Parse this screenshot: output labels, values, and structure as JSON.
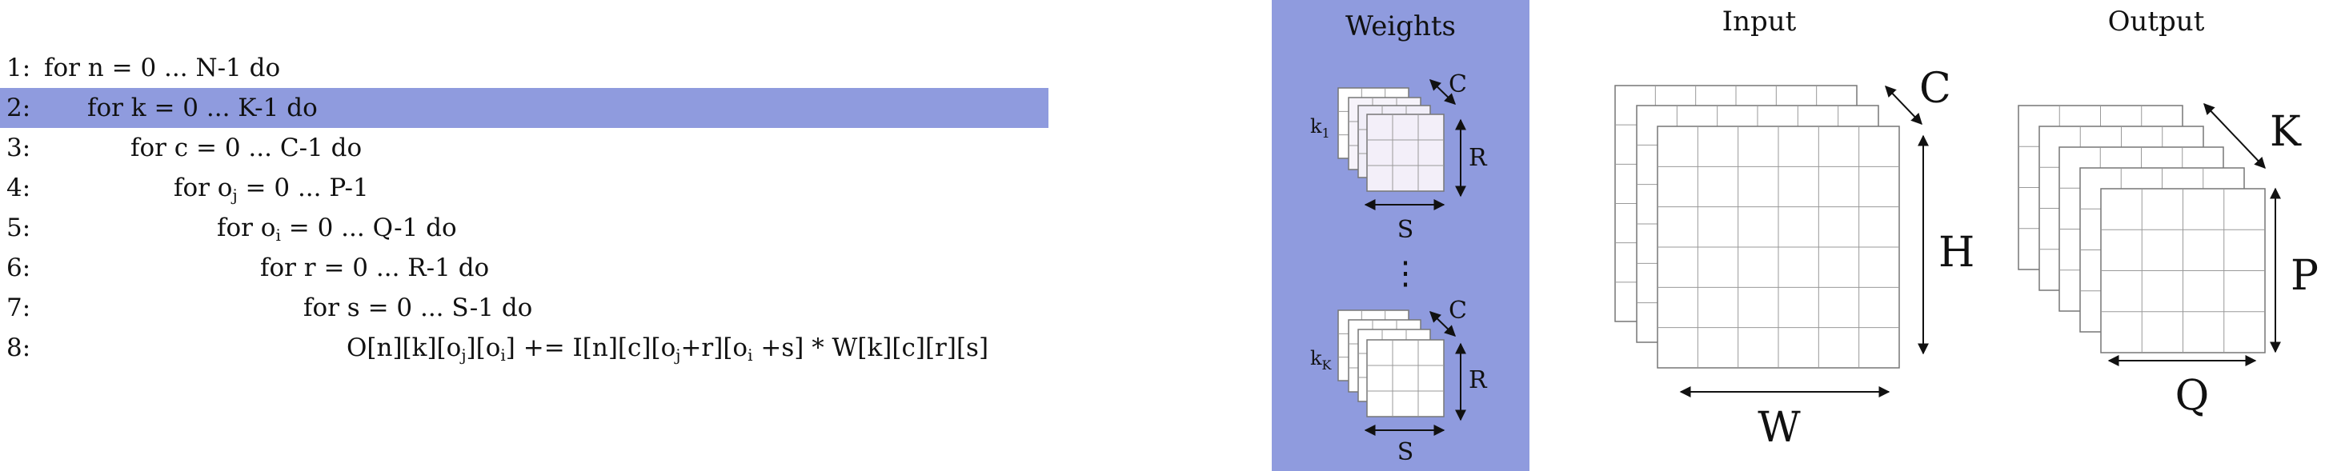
{
  "code": {
    "lines": [
      {
        "num": "1:",
        "pre": "for n = 0 ... N-1 do",
        "indent": 0
      },
      {
        "num": "2:",
        "pre": "for k = 0 ... K-1 do",
        "indent": 1,
        "highlight": true
      },
      {
        "num": "3:",
        "pre": "for c = 0 ... C-1 do",
        "indent": 2
      },
      {
        "num": "4:",
        "pre": "for o",
        "sub": "j",
        "post": " = 0 ... P-1",
        "indent": 3
      },
      {
        "num": "5:",
        "pre": "for o",
        "sub": "i",
        "post": " = 0 ... Q-1 do",
        "indent": 4
      },
      {
        "num": "6:",
        "pre": "for r = 0 ... R-1 do",
        "indent": 5
      },
      {
        "num": "7:",
        "pre": "for s = 0 ... S-1 do",
        "indent": 6
      },
      {
        "num": "8:",
        "indent": 7,
        "parts": [
          {
            "t": "O[n][k][o"
          },
          {
            "s": "j"
          },
          {
            "t": "][o"
          },
          {
            "s": "i"
          },
          {
            "t": "] += I[n][c][o"
          },
          {
            "s": "j"
          },
          {
            "t": "+r][o"
          },
          {
            "s": "i"
          },
          {
            "t": " +s] * W[k][c][r][s]"
          }
        ]
      }
    ]
  },
  "weights": {
    "title": "Weights",
    "k1_label": "k",
    "k1_sub": "1",
    "kK_label": "k",
    "kK_sub": "K",
    "c_label": "C",
    "r_label": "R",
    "s_label": "S",
    "ellipsis": "⋮"
  },
  "input": {
    "title": "Input",
    "c_label": "C",
    "h_label": "H",
    "w_label": "W"
  },
  "output": {
    "title": "Output",
    "k_label": "K",
    "p_label": "P",
    "q_label": "Q"
  },
  "colors": {
    "highlight": "#8f9bde",
    "kernel_fill": "#f3eff9"
  }
}
